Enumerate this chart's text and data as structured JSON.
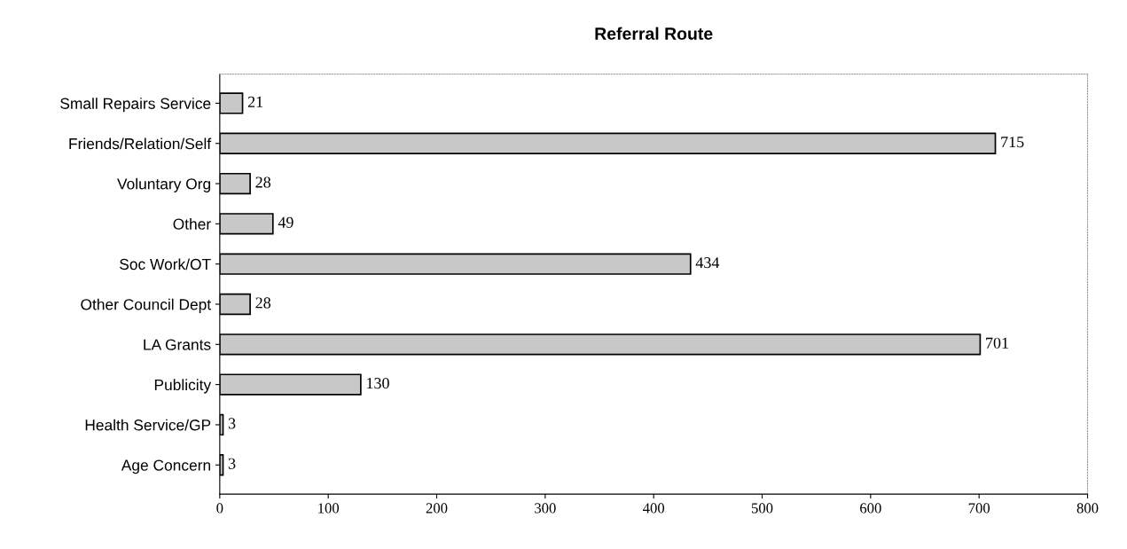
{
  "chart_data": {
    "type": "bar",
    "orientation": "horizontal",
    "title": "Referral Route",
    "categories": [
      "Small Repairs Service",
      "Friends/Relation/Self",
      "Voluntary Org",
      "Other",
      "Soc Work/OT",
      "Other Council Dept",
      "LA Grants",
      "Publicity",
      "Health Service/GP",
      "Age Concern"
    ],
    "values": [
      21,
      715,
      28,
      49,
      434,
      28,
      701,
      130,
      3,
      3
    ],
    "color": "#c8c8c8",
    "xlim": [
      0,
      800
    ],
    "xticks": [
      0,
      100,
      200,
      300,
      400,
      500,
      600,
      700,
      800
    ],
    "data_labels": true,
    "grid": false,
    "legend": false
  }
}
